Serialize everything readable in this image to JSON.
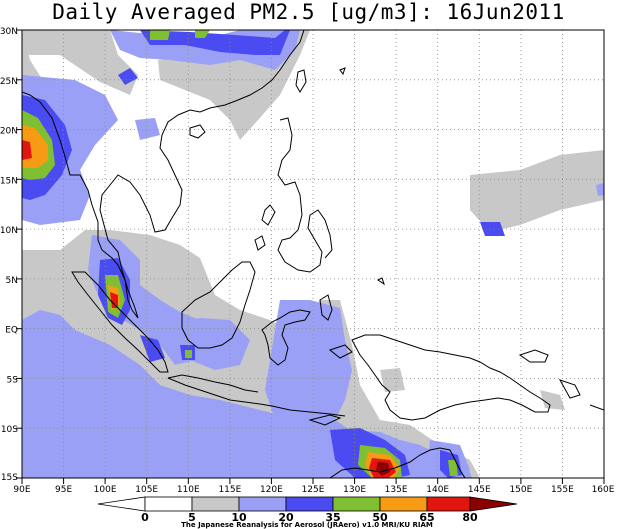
{
  "title": "Daily Averaged PM2.5 [ug/m3]: 16Jun2011",
  "axes": {
    "lon_labels": [
      "90E",
      "95E",
      "100E",
      "105E",
      "110E",
      "115E",
      "120E",
      "125E",
      "130E",
      "135E",
      "140E",
      "145E",
      "150E",
      "155E",
      "160E"
    ],
    "lat_labels": [
      "30N",
      "25N",
      "20N",
      "15N",
      "10N",
      "5N",
      "EQ",
      "5S",
      "10S",
      "15S"
    ]
  },
  "colorbar": {
    "levels": [
      "0",
      "5",
      "10",
      "20",
      "35",
      "50",
      "65",
      "80"
    ],
    "colors": [
      "#ffffff",
      "#ffffff",
      "#c8c8c8",
      "#9aa0f5",
      "#4b4bf2",
      "#7ec032",
      "#f79a14",
      "#e2150f",
      "#8b0000"
    ]
  },
  "credit": "The Japanese Reanalysis for Aerosol (JRAero) v1.0 MRI/KU RIAM",
  "palette": {
    "gray": "#c8c8c8",
    "lightblue": "#9aa0f5",
    "blue": "#4b4bf2",
    "green": "#7ec032",
    "orange": "#f79a14",
    "red": "#e2150f",
    "darkred": "#8b0000"
  }
}
